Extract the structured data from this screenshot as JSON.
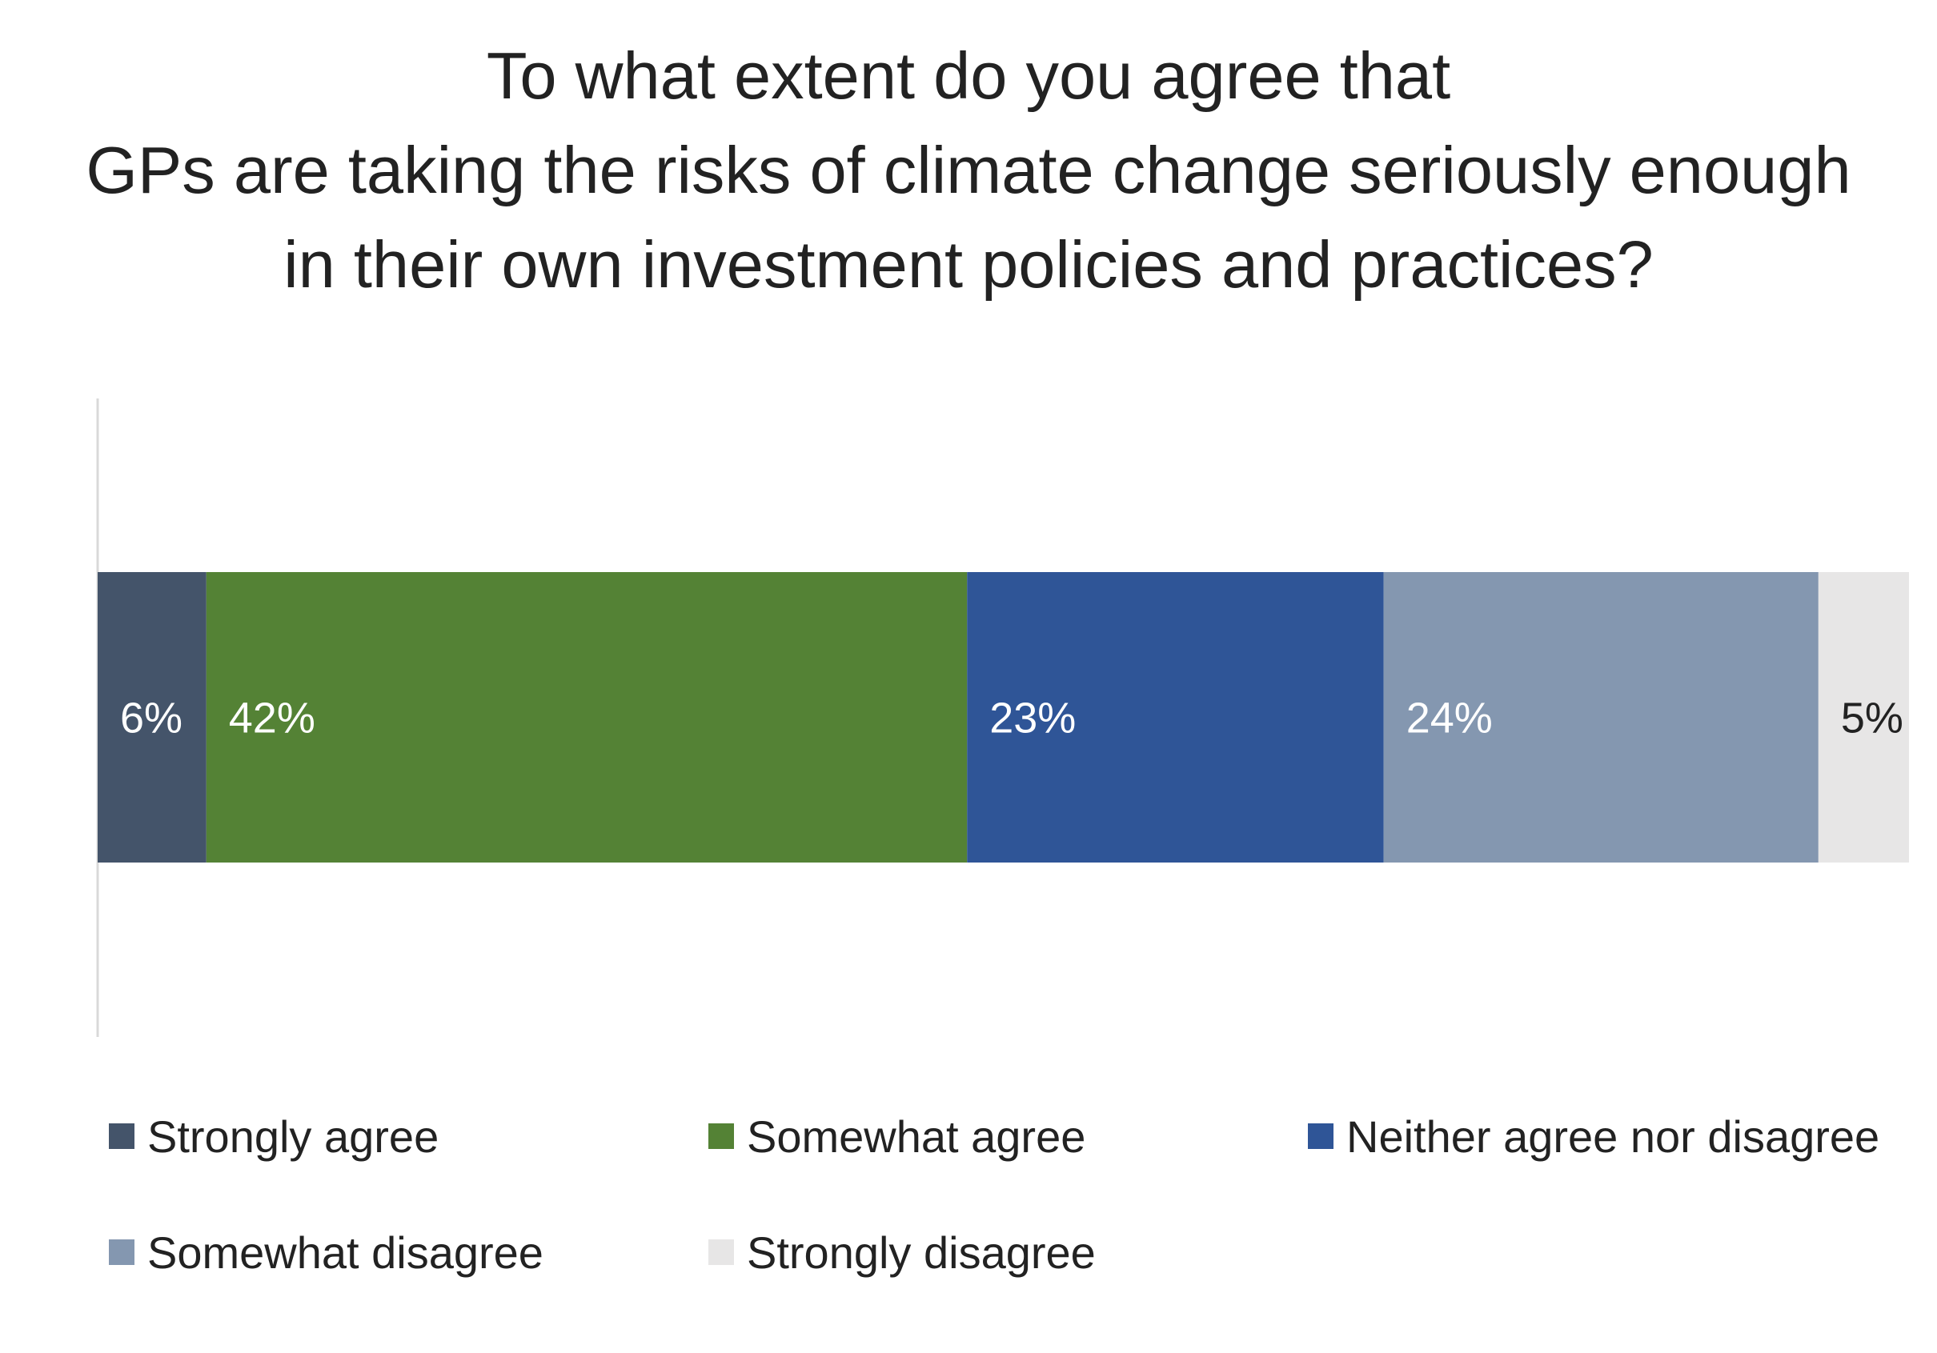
{
  "chart_data": {
    "type": "bar",
    "orientation": "horizontal-stacked",
    "title_lines": [
      "To what extent do you agree that",
      "GPs are taking the risks of climate change seriously enough",
      "in their own investment policies and practices?"
    ],
    "xlim": [
      0,
      100
    ],
    "grid": false,
    "legend_placement": "bottom",
    "series": [
      {
        "name": "Strongly agree",
        "value": 6,
        "label": "6%",
        "color": "#44546a",
        "label_color": "#ffffff"
      },
      {
        "name": "Somewhat agree",
        "value": 42,
        "label": "42%",
        "color": "#548235",
        "label_color": "#ffffff"
      },
      {
        "name": "Neither agree nor disagree",
        "value": 23,
        "label": "23%",
        "color": "#2f5597",
        "label_color": "#ffffff"
      },
      {
        "name": "Somewhat disagree",
        "value": 24,
        "label": "24%",
        "color": "#8497b0",
        "label_color": "#ffffff"
      },
      {
        "name": "Strongly disagree",
        "value": 5,
        "label": "5%",
        "color": "#e7e6e6",
        "label_color": "#222222"
      }
    ]
  }
}
